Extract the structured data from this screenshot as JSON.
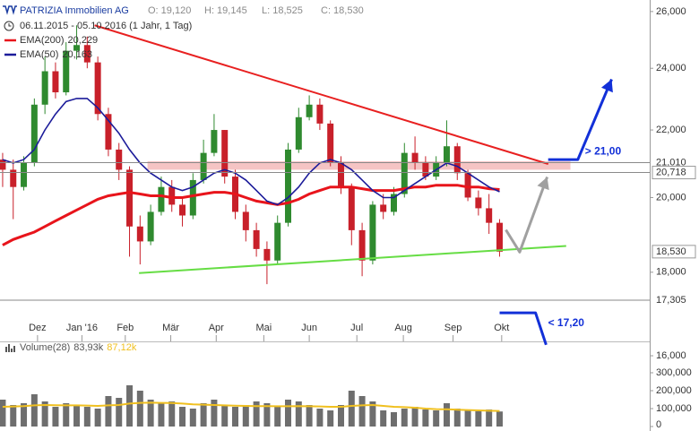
{
  "chart_data": [
    {
      "type": "candlestick",
      "title": "PATRIZIA Immobilien AG",
      "ohlc_labels": [
        "O: 19,120",
        "H: 19,145",
        "L: 18,525",
        "C: 18,530"
      ],
      "subtitle": "06.11.2015 - 05.10.2016 (1 Jahr, 1 Tag)",
      "log_scale": true,
      "ylim": [
        15960,
        26260
      ],
      "yticks": [
        {
          "value": 16000,
          "label": "16,000"
        },
        {
          "value": 18000,
          "label": "18,000"
        },
        {
          "value": 20000,
          "label": "20,000"
        },
        {
          "value": 22000,
          "label": "22,000"
        },
        {
          "value": 24000,
          "label": "24,000"
        },
        {
          "value": 26000,
          "label": "26,000"
        }
      ],
      "xlim": [
        -0.25,
        61.2
      ],
      "xticks": [
        {
          "value": 3.3,
          "label": "Dez"
        },
        {
          "value": 7.5,
          "label": "Jan '16"
        },
        {
          "value": 11.6,
          "label": "Feb"
        },
        {
          "value": 15.9,
          "label": "Mär"
        },
        {
          "value": 20.2,
          "label": "Apr"
        },
        {
          "value": 24.7,
          "label": "Mai"
        },
        {
          "value": 29.0,
          "label": "Jun"
        },
        {
          "value": 33.5,
          "label": "Jul"
        },
        {
          "value": 37.9,
          "label": "Aug"
        },
        {
          "value": 42.6,
          "label": "Sep"
        },
        {
          "value": 47.2,
          "label": "Okt"
        }
      ],
      "open": [
        21100,
        20800,
        20300,
        21000,
        22800,
        23900,
        23200,
        24600,
        24800,
        24200,
        22500,
        21400,
        20800,
        19200,
        18800,
        19600,
        20300,
        19800,
        19500,
        20500,
        21300,
        22000,
        20600,
        19600,
        19100,
        18600,
        18300,
        19300,
        21400,
        22400,
        22800,
        22200,
        21000,
        20300,
        19100,
        18300,
        19800,
        19600,
        20100,
        21300,
        21000,
        20600,
        21000,
        21500,
        20700,
        20000,
        19700,
        19300
      ],
      "high": [
        21300,
        21100,
        21200,
        23000,
        24400,
        24200,
        24900,
        25500,
        25100,
        24400,
        22700,
        21600,
        20900,
        19500,
        19800,
        20600,
        20500,
        20000,
        20700,
        21700,
        22500,
        22000,
        20800,
        19800,
        19300,
        18800,
        19500,
        21600,
        22700,
        23100,
        23000,
        22300,
        21200,
        20400,
        19300,
        19900,
        20100,
        20300,
        21600,
        21800,
        21200,
        21200,
        22300,
        21600,
        20800,
        20200,
        20100,
        19400
      ],
      "low": [
        20300,
        19400,
        20200,
        20900,
        22500,
        23000,
        23100,
        24300,
        24000,
        22300,
        21200,
        20500,
        18400,
        18200,
        18700,
        19500,
        19600,
        19200,
        19400,
        20400,
        21200,
        20400,
        19400,
        18800,
        18400,
        17700,
        18200,
        19200,
        21300,
        22300,
        22000,
        20900,
        20100,
        18700,
        17900,
        18200,
        19400,
        19500,
        20000,
        20800,
        20500,
        20500,
        20900,
        20500,
        19900,
        19500,
        19000,
        18400
      ],
      "close": [
        20800,
        20300,
        21000,
        22800,
        23900,
        23200,
        24600,
        24800,
        24200,
        22500,
        21400,
        20800,
        19200,
        18800,
        19600,
        20300,
        19800,
        19500,
        20500,
        21300,
        22000,
        20600,
        19600,
        19100,
        18600,
        18300,
        19300,
        21400,
        22400,
        22800,
        22200,
        21000,
        20300,
        19100,
        18300,
        19800,
        19600,
        20100,
        21300,
        21000,
        20600,
        21000,
        21500,
        20700,
        20000,
        19700,
        19300,
        18530
      ],
      "up_color": "#2f8a2f",
      "down_color": "#c8202a",
      "series": [
        {
          "name": "EMA(200)",
          "legend_value": "20,229",
          "color": "#e8141b",
          "values": [
            18700,
            18850,
            18950,
            19050,
            19200,
            19350,
            19500,
            19650,
            19800,
            19950,
            20050,
            20100,
            20150,
            20100,
            20050,
            20050,
            20000,
            20000,
            20050,
            20100,
            20150,
            20150,
            20100,
            20000,
            19900,
            19850,
            19800,
            19850,
            19950,
            20100,
            20200,
            20300,
            20300,
            20300,
            20250,
            20200,
            20200,
            20200,
            20250,
            20300,
            20300,
            20350,
            20350,
            20350,
            20300,
            20300,
            20250,
            20229
          ]
        },
        {
          "name": "EMA(50)",
          "legend_value": "20,163",
          "color": "#1c1c9a",
          "values": [
            21100,
            21000,
            21100,
            21400,
            22000,
            22500,
            22900,
            23000,
            23000,
            22700,
            22300,
            21900,
            21400,
            21000,
            20700,
            20500,
            20300,
            20200,
            20300,
            20500,
            20700,
            20800,
            20700,
            20500,
            20200,
            19900,
            19800,
            20000,
            20300,
            20700,
            21000,
            21100,
            21000,
            20800,
            20500,
            20200,
            20000,
            20000,
            20200,
            20400,
            20600,
            20800,
            21000,
            20900,
            20700,
            20500,
            20300,
            20163
          ]
        }
      ],
      "price_markers": [
        {
          "value": 21010,
          "label": "21,010",
          "line": true,
          "boxed": false
        },
        {
          "value": 20718,
          "label": "20,718",
          "line": true,
          "boxed": true
        },
        {
          "value": 18530,
          "label": "18,530",
          "line": false,
          "boxed": true
        },
        {
          "value": 17305,
          "label": "17,305",
          "line": true,
          "boxed": false
        }
      ],
      "band": {
        "color": "#f2b0b0",
        "x": [
          13.7,
          53.7
        ],
        "y": [
          20800,
          21050
        ]
      },
      "trendlines": [
        {
          "color": "#e82020",
          "x": [
            8.7,
            51.6
          ],
          "y": [
            25500,
            20970
          ]
        },
        {
          "color": "#66dd44",
          "x": [
            12.9,
            53.3
          ],
          "y": [
            17980,
            18680
          ]
        }
      ],
      "scenarios": [
        {
          "label": "> 21,00",
          "color": "#1230d8",
          "arrow": true,
          "x": [
            51.6,
            54.4,
            57.6
          ],
          "y": [
            21100,
            21100,
            23630
          ]
        },
        {
          "label": "< 17,20",
          "color": "#1230d8",
          "arrow": false,
          "x": [
            47.0,
            50.4,
            51.4
          ],
          "y": [
            17000,
            17000,
            16250
          ]
        },
        {
          "color": "#a0a0a0",
          "arrow": true,
          "x": [
            47.6,
            48.9,
            51.5
          ],
          "y": [
            19110,
            18520,
            20590
          ]
        }
      ]
    },
    {
      "type": "volume",
      "name": "Volume(28)",
      "value_label": "83,93k",
      "color": "#6e6e6e",
      "values": [
        150000,
        120000,
        130000,
        180000,
        140000,
        110000,
        130000,
        120000,
        110000,
        100000,
        170000,
        160000,
        230000,
        200000,
        150000,
        130000,
        140000,
        110000,
        100000,
        130000,
        150000,
        120000,
        110000,
        120000,
        140000,
        130000,
        110000,
        150000,
        140000,
        120000,
        100000,
        90000,
        120000,
        200000,
        170000,
        140000,
        90000,
        80000,
        100000,
        110000,
        95000,
        90000,
        130000,
        100000,
        90000,
        85000,
        95000,
        83930
      ],
      "average": {
        "label": "87,12k",
        "color": "#f0c020",
        "values": [
          110000,
          112000,
          114000,
          118000,
          120000,
          119000,
          118000,
          118000,
          117000,
          115000,
          118000,
          120000,
          128000,
          132000,
          133000,
          132000,
          131000,
          128000,
          124000,
          122000,
          120000,
          118000,
          116000,
          115000,
          114000,
          114000,
          113000,
          113000,
          114000,
          113000,
          112000,
          110000,
          110000,
          115000,
          118000,
          120000,
          115000,
          110000,
          108000,
          105000,
          100000,
          97000,
          96000,
          94000,
          92000,
          90000,
          88000,
          87120
        ]
      },
      "ylim": [
        0,
        460000
      ],
      "yticks": [
        0,
        {
          "value": 100000,
          "label": "100,000"
        },
        {
          "value": 200000,
          "label": "200,000"
        },
        {
          "value": 300000,
          "label": "300,000"
        }
      ]
    }
  ]
}
